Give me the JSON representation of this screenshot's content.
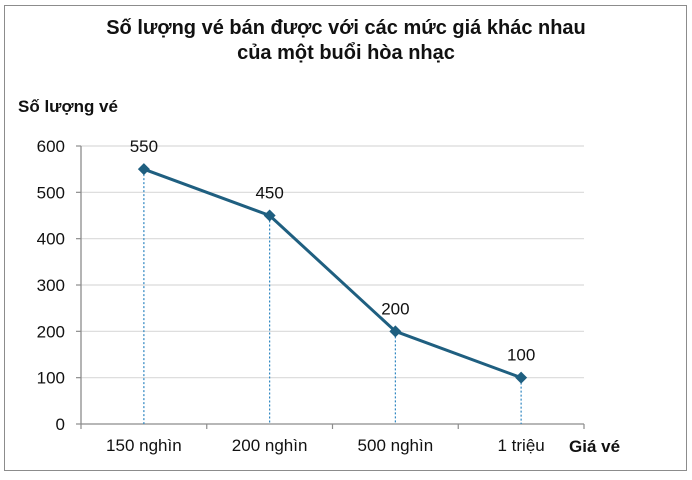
{
  "chart_data": {
    "type": "line",
    "title": "Số lượng vé bán được với các mức giá khác nhau của một buổi hòa nhạc",
    "title_lines": [
      "Số lượng vé bán được với các mức giá khác nhau",
      "của một buổi hòa nhạc"
    ],
    "xlabel": "Giá vé",
    "ylabel": "Số lượng vé",
    "categories": [
      "150 nghìn",
      "200 nghìn",
      "500 nghìn",
      "1 triệu"
    ],
    "values": [
      550,
      450,
      200,
      100
    ],
    "data_labels": [
      "550",
      "450",
      "200",
      "100"
    ],
    "ylim": [
      0,
      600
    ],
    "yticks": [
      0,
      100,
      200,
      300,
      400,
      500,
      600
    ],
    "grid": true,
    "legend": null,
    "drop_lines": true,
    "marker": "diamond",
    "colors": {
      "line": "#1f5f80",
      "drop_line": "#2e86c1",
      "grid": "#d9d9d9",
      "axis": "#8c8c8c"
    }
  }
}
